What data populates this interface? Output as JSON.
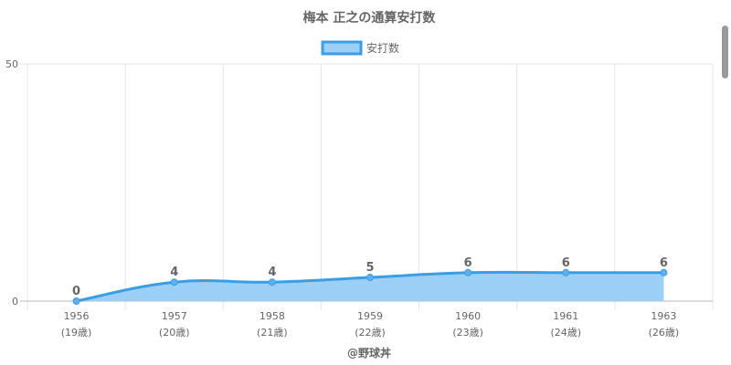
{
  "chart_data": {
    "type": "area",
    "title": "梅本 正之の通算安打数",
    "categories": [
      "1956",
      "1957",
      "1958",
      "1959",
      "1960",
      "1961",
      "1963"
    ],
    "sublabels": [
      "(19歳)",
      "(20歳)",
      "(21歳)",
      "(22歳)",
      "(23歳)",
      "(24歳)",
      "(26歳)"
    ],
    "series": [
      {
        "name": "安打数",
        "values": [
          0,
          4,
          4,
          5,
          6,
          6,
          6
        ]
      }
    ],
    "ylim": [
      0,
      50
    ],
    "yticks": [
      "0",
      "50"
    ],
    "grid": true,
    "legend": "top-center",
    "credit": "@野球丼",
    "colors": {
      "line": "#3b9de3",
      "fill": "#9ccff6",
      "point": "#5fb0ee",
      "label": "#666666",
      "grid": "#e6e6e6",
      "axis": "#bbbbbb"
    }
  }
}
